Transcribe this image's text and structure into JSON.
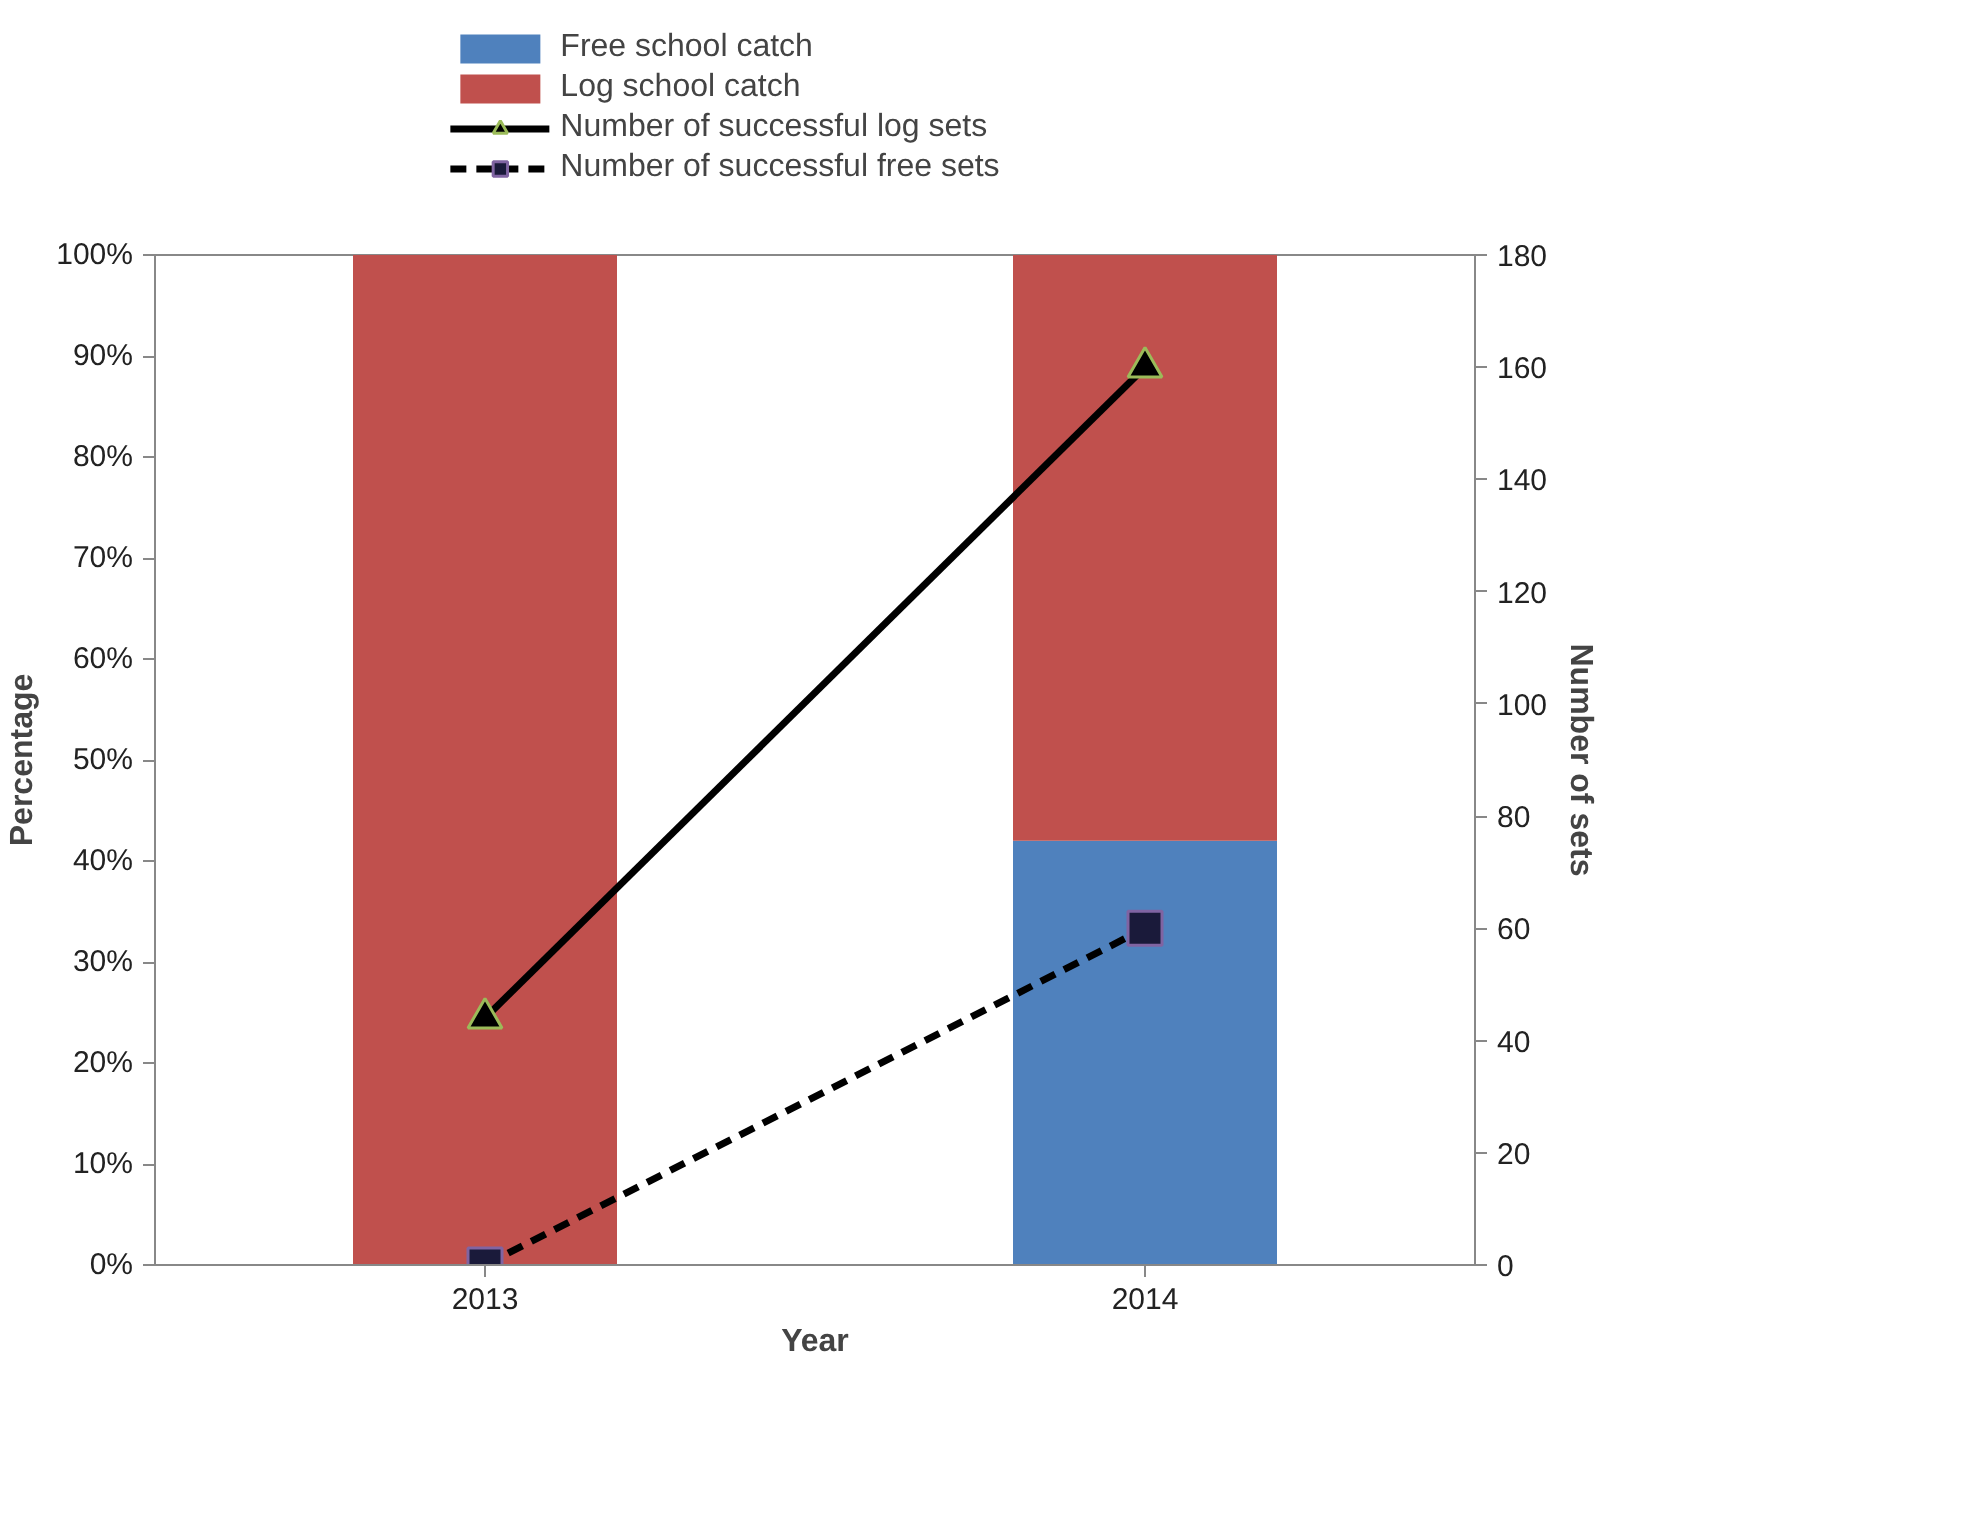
{
  "chart_data": {
    "type": "bar",
    "stacked": true,
    "xlabel": "Year",
    "ylabel": "Percentage",
    "y2label": "Number of sets",
    "categories": [
      "2013",
      "2014"
    ],
    "series": [
      {
        "name": "Free school catch",
        "color": "#4f81bd",
        "values": [
          0,
          42
        ]
      },
      {
        "name": "Log school catch",
        "color": "#c0504d",
        "values": [
          100,
          58
        ]
      },
      {
        "name": "Number of successful log sets",
        "type": "line",
        "axis": "y2",
        "color": "#000000",
        "marker": "triangle",
        "line_style": "solid",
        "values": [
          44,
          160
        ]
      },
      {
        "name": "Number of successful free sets",
        "type": "line",
        "axis": "y2",
        "color": "#000000",
        "marker": "square",
        "line_style": "dashed",
        "values": [
          0,
          60
        ]
      }
    ],
    "ylim": [
      0,
      100
    ],
    "yticks": [
      {
        "value": 0,
        "label": "0%"
      },
      {
        "value": 10,
        "label": "10%"
      },
      {
        "value": 20,
        "label": "20%"
      },
      {
        "value": 30,
        "label": "30%"
      },
      {
        "value": 40,
        "label": "40%"
      },
      {
        "value": 50,
        "label": "50%"
      },
      {
        "value": 60,
        "label": "60%"
      },
      {
        "value": 70,
        "label": "70%"
      },
      {
        "value": 80,
        "label": "80%"
      },
      {
        "value": 90,
        "label": "90%"
      },
      {
        "value": 100,
        "label": "100%"
      }
    ],
    "y2lim": [
      0,
      180
    ],
    "y2ticks": [
      0,
      20,
      40,
      60,
      80,
      100,
      120,
      140,
      160,
      180
    ],
    "grid": false,
    "legend": "top"
  }
}
